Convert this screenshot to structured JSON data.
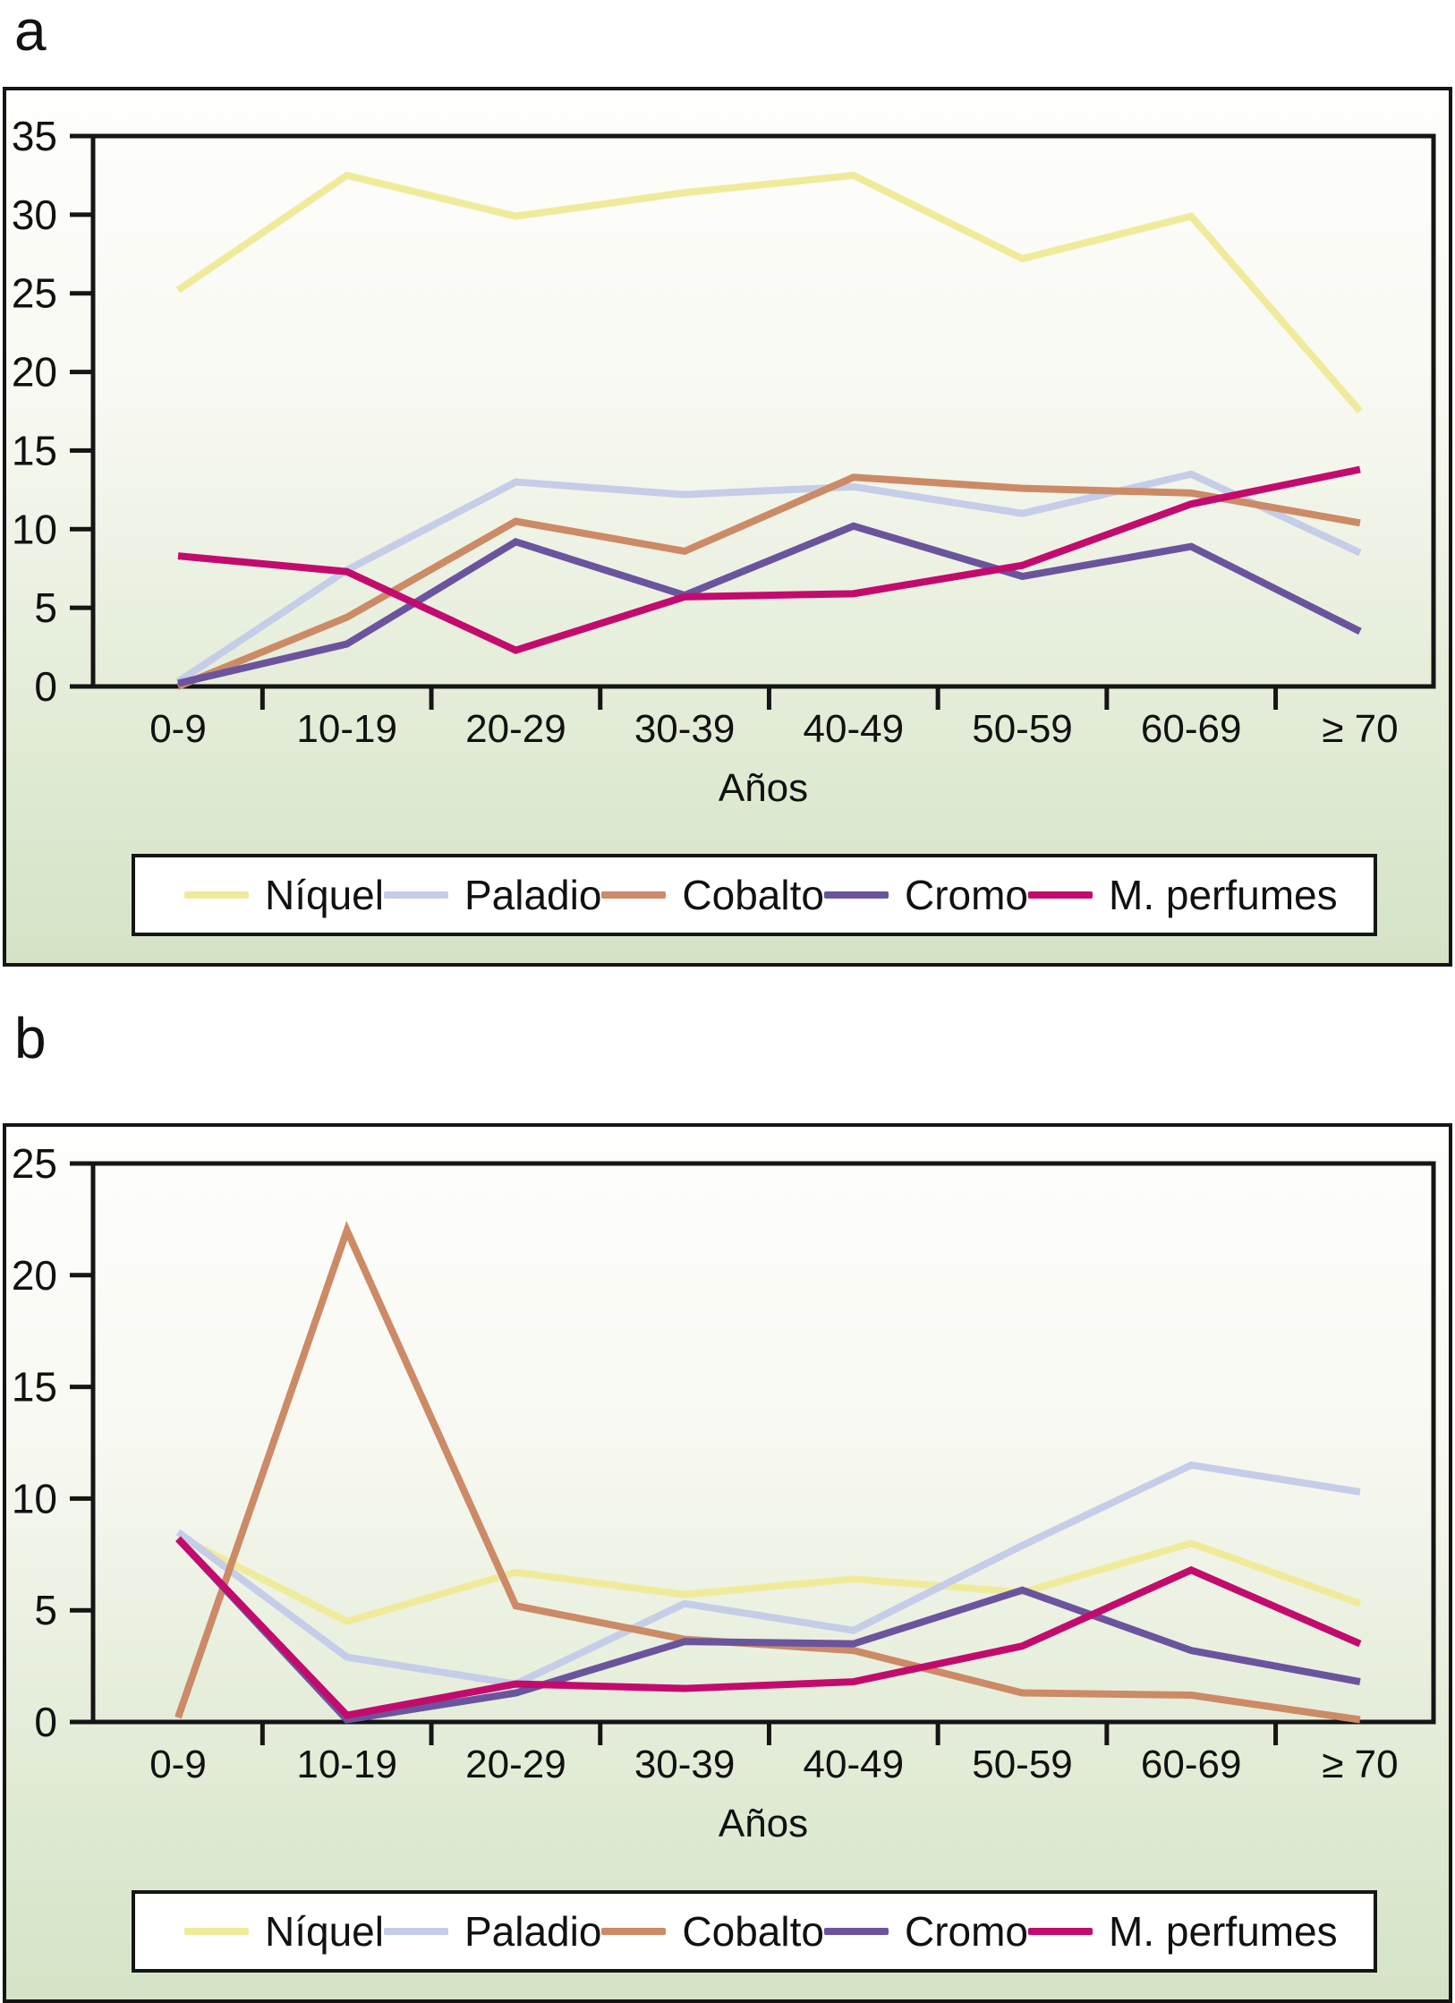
{
  "page": {
    "panel_a_label": "a",
    "panel_b_label": "b"
  },
  "chart_data": [
    {
      "id": "a",
      "type": "line",
      "panel_label": "a",
      "xlabel": "Años",
      "ylabel": "",
      "ylim": [
        0,
        35
      ],
      "y_ticks": [
        0,
        5,
        10,
        15,
        20,
        25,
        30,
        35
      ],
      "grid": false,
      "legend_position": "bottom",
      "categories": [
        "0-9",
        "10-19",
        "20-29",
        "30-39",
        "40-49",
        "50-59",
        "60-69",
        "≥ 70"
      ],
      "series": [
        {
          "name": "Níquel",
          "color": "#f0eb9b",
          "values": [
            25.2,
            32.5,
            29.9,
            31.4,
            32.5,
            27.2,
            29.9,
            17.5
          ]
        },
        {
          "name": "Paladio",
          "color": "#c5cde8",
          "values": [
            0.3,
            7.4,
            13.0,
            12.2,
            12.7,
            11.0,
            13.5,
            8.5
          ]
        },
        {
          "name": "Cobalto",
          "color": "#cc8a66",
          "values": [
            0.0,
            4.4,
            10.5,
            8.6,
            13.3,
            12.6,
            12.3,
            10.4
          ]
        },
        {
          "name": "Cromo",
          "color": "#6b549e",
          "values": [
            0.2,
            2.7,
            9.2,
            5.8,
            10.2,
            7.0,
            8.9,
            3.5
          ]
        },
        {
          "name": "M. perfumes",
          "color": "#c30b6e",
          "values": [
            8.3,
            7.3,
            2.3,
            5.7,
            5.9,
            7.7,
            11.6,
            13.8
          ]
        }
      ]
    },
    {
      "id": "b",
      "type": "line",
      "panel_label": "b",
      "xlabel": "Años",
      "ylabel": "",
      "ylim": [
        0,
        25
      ],
      "y_ticks": [
        0,
        5,
        10,
        15,
        20,
        25
      ],
      "grid": false,
      "legend_position": "bottom",
      "categories": [
        "0-9",
        "10-19",
        "20-29",
        "30-39",
        "40-49",
        "50-59",
        "60-69",
        "≥ 70"
      ],
      "series": [
        {
          "name": "Níquel",
          "color": "#f0eb9b",
          "values": [
            8.3,
            4.5,
            6.7,
            5.7,
            6.4,
            5.8,
            8.0,
            5.3
          ]
        },
        {
          "name": "Paladio",
          "color": "#c5cde8",
          "values": [
            8.5,
            2.9,
            1.7,
            5.3,
            4.1,
            7.9,
            11.5,
            10.3
          ]
        },
        {
          "name": "Cobalto",
          "color": "#cc8a66",
          "values": [
            0.2,
            22.0,
            5.2,
            3.7,
            3.2,
            1.3,
            1.2,
            0.1
          ]
        },
        {
          "name": "Cromo",
          "color": "#6b549e",
          "values": [
            8.2,
            0.1,
            1.3,
            3.6,
            3.5,
            5.9,
            3.2,
            1.8
          ]
        },
        {
          "name": "M. perfumes",
          "color": "#c30b6e",
          "values": [
            8.2,
            0.3,
            1.7,
            1.5,
            1.8,
            3.4,
            6.8,
            3.5
          ]
        }
      ]
    }
  ]
}
